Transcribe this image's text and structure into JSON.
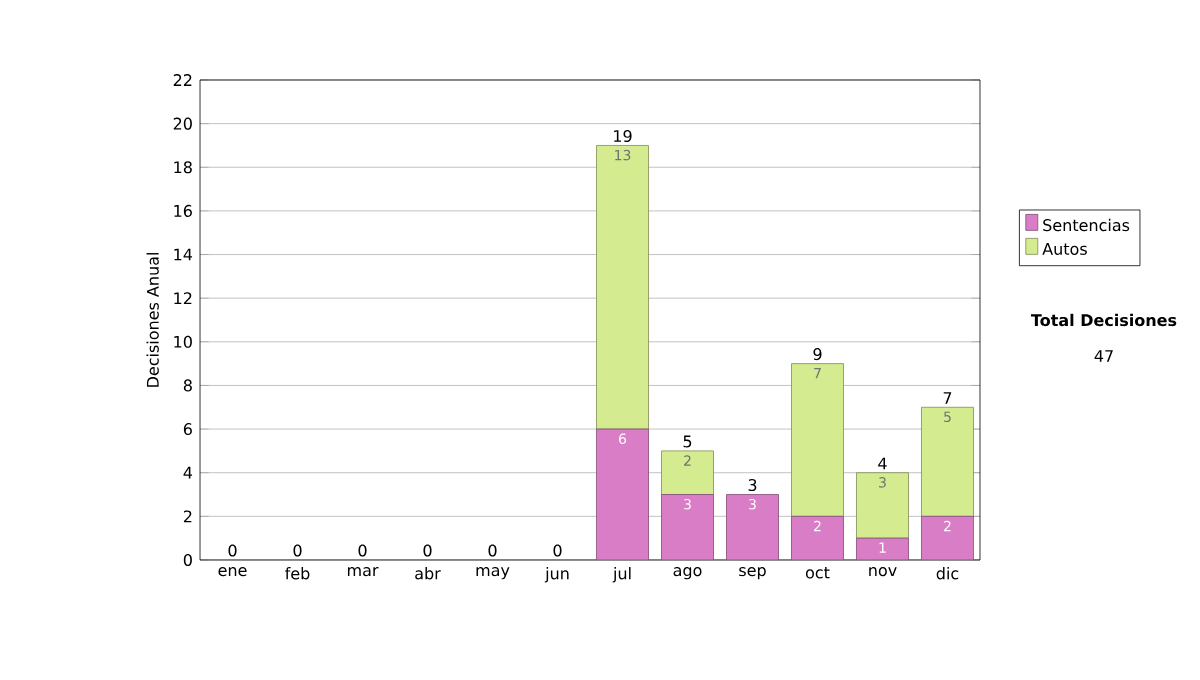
{
  "chart_data": {
    "type": "bar",
    "stacked": true,
    "ylabel": "Decisiones Anual",
    "categories": [
      "ene",
      "feb",
      "mar",
      "abr",
      "may",
      "jun",
      "jul",
      "ago",
      "sep",
      "oct",
      "nov",
      "dic"
    ],
    "series": [
      {
        "name": "Sentencias",
        "color": "#d97dc6",
        "values": [
          0,
          0,
          0,
          0,
          0,
          0,
          6,
          3,
          3,
          2,
          1,
          2
        ],
        "value_labels": [
          null,
          null,
          null,
          null,
          null,
          null,
          "6",
          "3",
          "3",
          "2",
          "1",
          "2"
        ]
      },
      {
        "name": "Autos",
        "color": "#d4eb8f",
        "values": [
          0,
          0,
          0,
          0,
          0,
          0,
          13,
          2,
          0,
          7,
          3,
          5
        ],
        "value_labels": [
          null,
          null,
          null,
          null,
          null,
          null,
          "13",
          "2",
          null,
          "7",
          "3",
          "5"
        ]
      }
    ],
    "totals": [
      "0",
      "0",
      "0",
      "0",
      "0",
      "0",
      "19",
      "5",
      "3",
      "9",
      "4",
      "7"
    ],
    "ylim": [
      0,
      22
    ],
    "yticks": [
      0,
      2,
      4,
      6,
      8,
      10,
      12,
      14,
      16,
      18,
      20,
      22
    ],
    "grid": "y",
    "legend": "right",
    "annotations": [
      "Total Decisiones",
      "47"
    ]
  }
}
